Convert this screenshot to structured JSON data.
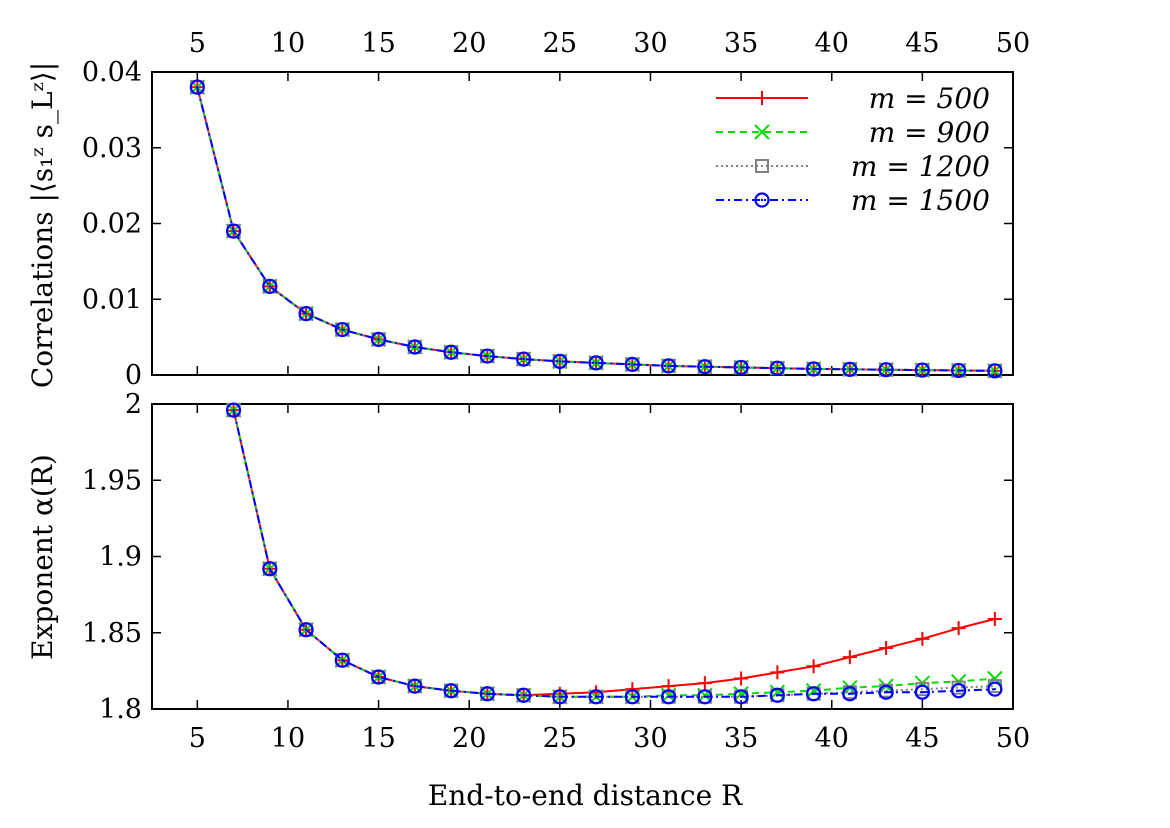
{
  "chart_data": [
    {
      "type": "line",
      "ylabel": "Correlations |⟨s₁ᶻ s_Lᶻ⟩|",
      "xlim": [
        2.5,
        50
      ],
      "ylim": [
        0,
        0.04
      ],
      "x_ticks": [
        "5",
        "10",
        "15",
        "20",
        "25",
        "30",
        "35",
        "40",
        "45",
        "50"
      ],
      "y_ticks": [
        "0",
        "0.01",
        "0.02",
        "0.03",
        "0.04"
      ],
      "top_x_ticks": [
        "5",
        "10",
        "15",
        "20",
        "25",
        "30",
        "35",
        "40",
        "45",
        "50"
      ],
      "legend_placement": "top-right",
      "x": [
        5,
        7,
        9,
        11,
        13,
        15,
        17,
        19,
        21,
        23,
        25,
        27,
        29,
        31,
        33,
        35,
        37,
        39,
        41,
        43,
        45,
        47,
        49
      ],
      "series": [
        {
          "name": "m = 500",
          "color": "#ff0000",
          "dash": "",
          "marker": "plus",
          "values": [
            0.038,
            0.019,
            0.0117,
            0.0081,
            0.006,
            0.0047,
            0.0037,
            0.003,
            0.0025,
            0.0021,
            0.0018,
            0.0016,
            0.0014,
            0.0012,
            0.0011,
            0.001,
            0.0009,
            0.0008,
            0.00075,
            0.0007,
            0.00065,
            0.0006,
            0.00055
          ]
        },
        {
          "name": "m = 900",
          "color": "#00dd00",
          "dash": "7,5",
          "marker": "cross",
          "values": [
            0.038,
            0.019,
            0.0117,
            0.0081,
            0.006,
            0.0047,
            0.0037,
            0.003,
            0.0025,
            0.0021,
            0.0018,
            0.0016,
            0.0014,
            0.0012,
            0.0011,
            0.001,
            0.0009,
            0.0008,
            0.00075,
            0.0007,
            0.00065,
            0.0006,
            0.00055
          ]
        },
        {
          "name": "m = 1200",
          "color": "#808080",
          "dash": "2,3",
          "marker": "square",
          "values": [
            0.038,
            0.019,
            0.0117,
            0.0081,
            0.006,
            0.0047,
            0.0037,
            0.003,
            0.0025,
            0.0021,
            0.0018,
            0.0016,
            0.0014,
            0.0012,
            0.0011,
            0.001,
            0.0009,
            0.0008,
            0.00075,
            0.0007,
            0.00065,
            0.0006,
            0.00055
          ]
        },
        {
          "name": "m = 1500",
          "color": "#0000ff",
          "dash": "8,4,2,4",
          "marker": "circle",
          "values": [
            0.038,
            0.019,
            0.0117,
            0.0081,
            0.006,
            0.0047,
            0.0037,
            0.003,
            0.0025,
            0.0021,
            0.0018,
            0.0016,
            0.0014,
            0.0012,
            0.0011,
            0.001,
            0.0009,
            0.0008,
            0.00075,
            0.0007,
            0.00065,
            0.0006,
            0.00055
          ]
        }
      ]
    },
    {
      "type": "line",
      "xlabel": "End-to-end distance R",
      "ylabel": "Exponent α(R)",
      "xlim": [
        2.5,
        50
      ],
      "ylim": [
        1.8,
        2.0
      ],
      "x_ticks": [
        "5",
        "10",
        "15",
        "20",
        "25",
        "30",
        "35",
        "40",
        "45",
        "50"
      ],
      "y_ticks": [
        "1.8",
        "1.85",
        "1.9",
        "1.95",
        "2"
      ],
      "x": [
        7,
        9,
        11,
        13,
        15,
        17,
        19,
        21,
        23,
        25,
        27,
        29,
        31,
        33,
        35,
        37,
        39,
        41,
        43,
        45,
        47,
        49
      ],
      "series": [
        {
          "name": "m = 500",
          "color": "#ff0000",
          "dash": "",
          "marker": "plus",
          "values": [
            1.996,
            1.892,
            1.852,
            1.832,
            1.821,
            1.815,
            1.812,
            1.81,
            1.809,
            1.81,
            1.811,
            1.813,
            1.815,
            1.817,
            1.82,
            1.824,
            1.828,
            1.834,
            1.84,
            1.846,
            1.853,
            1.859
          ]
        },
        {
          "name": "m = 900",
          "color": "#00dd00",
          "dash": "7,5",
          "marker": "cross",
          "values": [
            1.996,
            1.892,
            1.852,
            1.832,
            1.821,
            1.815,
            1.812,
            1.81,
            1.809,
            1.808,
            1.808,
            1.808,
            1.809,
            1.809,
            1.81,
            1.811,
            1.812,
            1.814,
            1.815,
            1.817,
            1.818,
            1.82
          ]
        },
        {
          "name": "m = 1200",
          "color": "#808080",
          "dash": "2,3",
          "marker": "square",
          "values": [
            1.996,
            1.892,
            1.852,
            1.832,
            1.821,
            1.815,
            1.812,
            1.81,
            1.809,
            1.808,
            1.808,
            1.808,
            1.808,
            1.808,
            1.808,
            1.809,
            1.81,
            1.811,
            1.812,
            1.813,
            1.814,
            1.815
          ]
        },
        {
          "name": "m = 1500",
          "color": "#0000ff",
          "dash": "8,4,2,4",
          "marker": "circle",
          "values": [
            1.996,
            1.892,
            1.852,
            1.832,
            1.821,
            1.815,
            1.812,
            1.81,
            1.809,
            1.808,
            1.808,
            1.808,
            1.808,
            1.808,
            1.808,
            1.809,
            1.81,
            1.81,
            1.811,
            1.811,
            1.812,
            1.813
          ]
        }
      ]
    }
  ]
}
